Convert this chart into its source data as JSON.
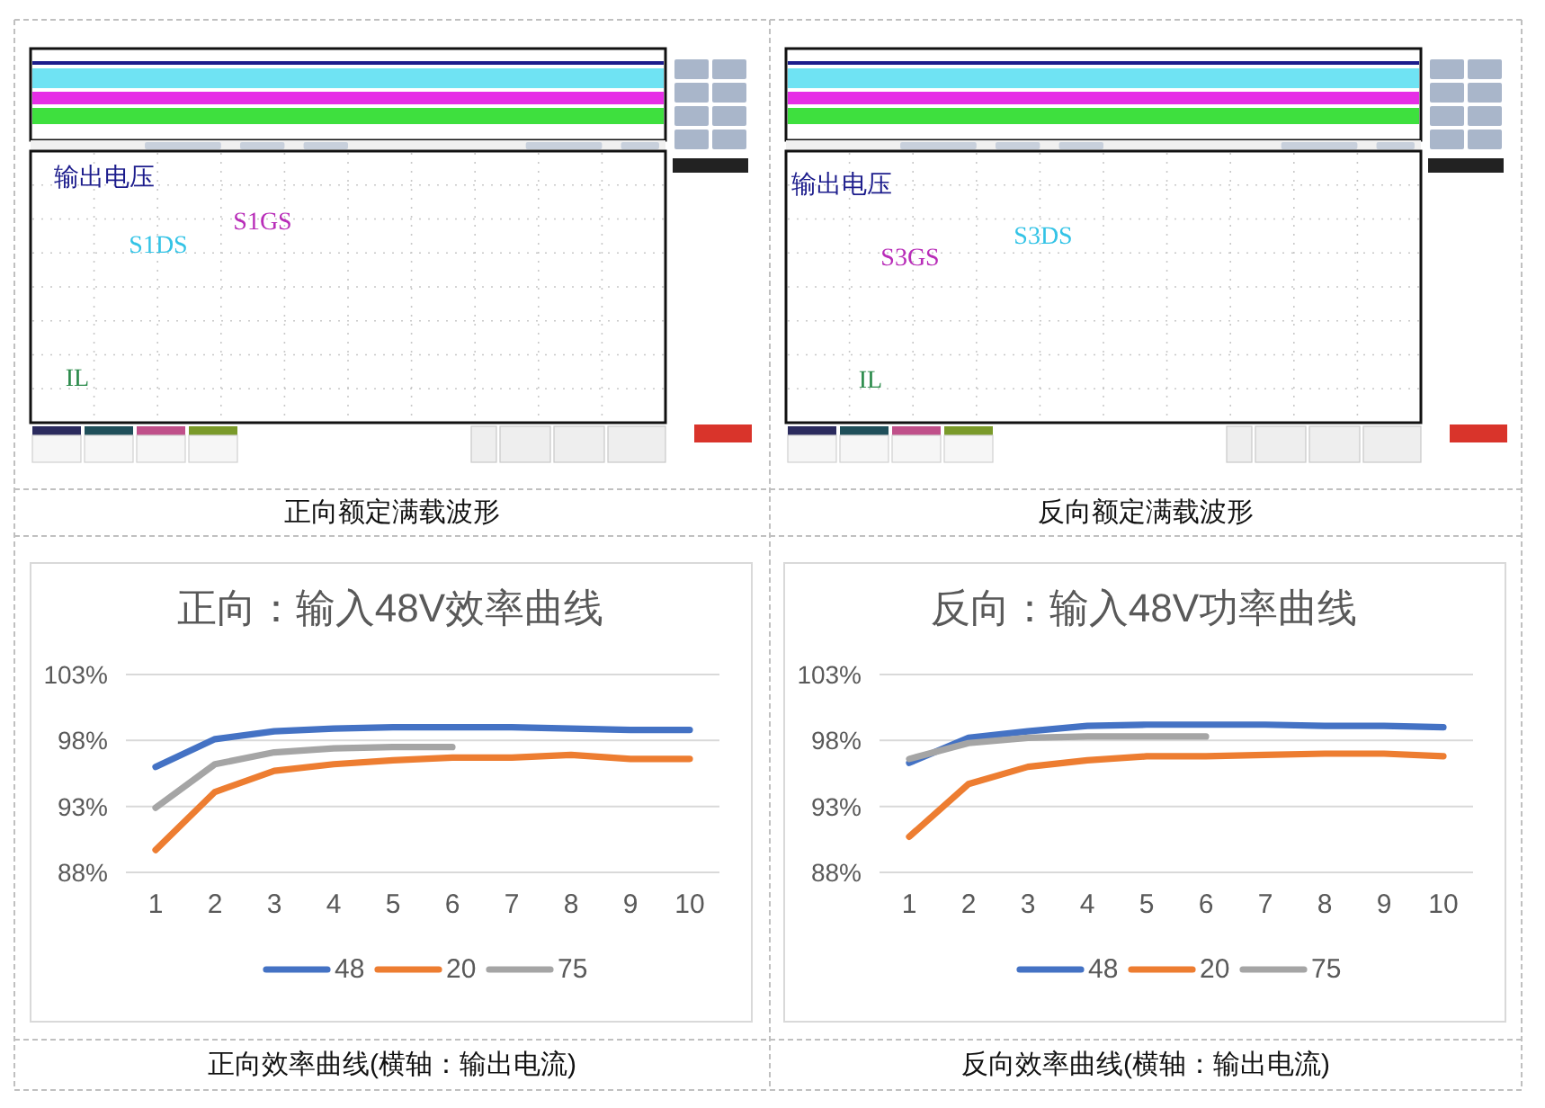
{
  "chart_data": [
    {
      "type": "other",
      "annotations": [
        "输出电压",
        "S1DS",
        "S1GS",
        "IL",
        "正向额定满载波形"
      ]
    },
    {
      "type": "other",
      "annotations": [
        "输出电压",
        "S3DS",
        "S3GS",
        "IL",
        "反向额定满载波形"
      ]
    },
    {
      "type": "line",
      "title": "正向：输入48V效率曲线",
      "categories": [
        "1",
        "2",
        "3",
        "4",
        "5",
        "6",
        "7",
        "8",
        "9",
        "10"
      ],
      "series": [
        {
          "name": "48",
          "color": "#4472c4",
          "values": [
            96.0,
            98.1,
            98.7,
            98.9,
            99.0,
            99.0,
            99.0,
            98.9,
            98.8,
            98.8
          ]
        },
        {
          "name": "20",
          "color": "#ed7d31",
          "values": [
            89.7,
            94.1,
            95.7,
            96.2,
            96.5,
            96.7,
            96.7,
            96.9,
            96.6,
            96.6
          ]
        },
        {
          "name": "75",
          "color": "#a5a5a5",
          "values": [
            92.9,
            96.2,
            97.1,
            97.4,
            97.5,
            97.5,
            null,
            null,
            null,
            null
          ]
        }
      ],
      "ylim": [
        88,
        103
      ],
      "yticks": [
        {
          "value": 88,
          "label": "88%"
        },
        {
          "value": 93,
          "label": "93%"
        },
        {
          "value": 98,
          "label": "98%"
        },
        {
          "value": 103,
          "label": "103%"
        }
      ],
      "grid": "y",
      "legend": "bottom",
      "annotations": [
        "正向效率曲线(横轴：输出电流)"
      ]
    },
    {
      "type": "line",
      "title": "反向：输入48V功率曲线",
      "categories": [
        "1",
        "2",
        "3",
        "4",
        "5",
        "6",
        "7",
        "8",
        "9",
        "10"
      ],
      "series": [
        {
          "name": "48",
          "color": "#4472c4",
          "values": [
            96.3,
            98.2,
            98.7,
            99.1,
            99.2,
            99.2,
            99.2,
            99.1,
            99.1,
            99.0
          ]
        },
        {
          "name": "20",
          "color": "#ed7d31",
          "values": [
            90.7,
            94.7,
            96.0,
            96.5,
            96.8,
            96.8,
            96.9,
            97.0,
            97.0,
            96.8
          ]
        },
        {
          "name": "75",
          "color": "#a5a5a5",
          "values": [
            96.6,
            97.8,
            98.2,
            98.3,
            98.3,
            98.3,
            null,
            null,
            null,
            null
          ]
        }
      ],
      "ylim": [
        88,
        103
      ],
      "yticks": [
        {
          "value": 88,
          "label": "88%"
        },
        {
          "value": 93,
          "label": "93%"
        },
        {
          "value": 98,
          "label": "98%"
        },
        {
          "value": 103,
          "label": "103%"
        }
      ],
      "grid": "y",
      "legend": "bottom",
      "annotations": [
        "反向效率曲线(横轴：输出电流)"
      ]
    }
  ]
}
